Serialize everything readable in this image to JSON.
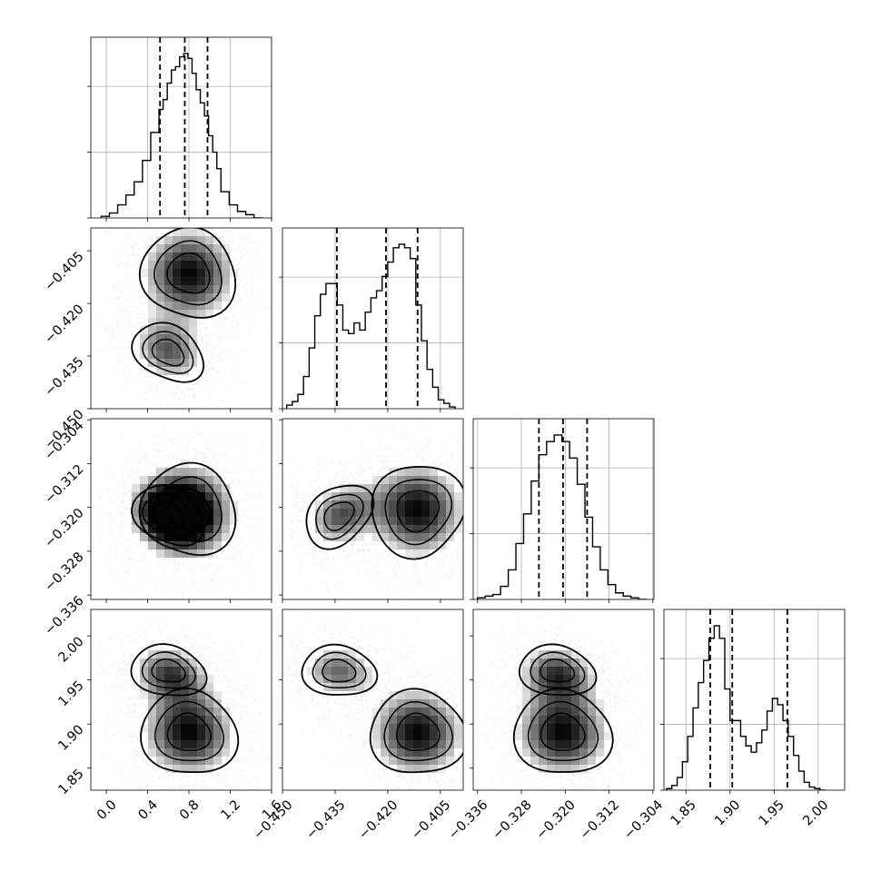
{
  "chart_data": {
    "type": "corner",
    "n_params": 4,
    "params": [
      {
        "lim": [
          -0.15,
          1.6
        ],
        "ticks": [
          0.0,
          0.4,
          0.8,
          1.2,
          1.6
        ],
        "tick_labels": [
          "0.0",
          "0.4",
          "0.8",
          "1.2",
          "1.6"
        ],
        "quantiles": [
          0.52,
          0.76,
          0.98
        ],
        "hist_edges": [
          -0.05,
          0.03,
          0.11,
          0.19,
          0.27,
          0.35,
          0.43,
          0.51,
          0.55,
          0.59,
          0.63,
          0.67,
          0.71,
          0.75,
          0.79,
          0.83,
          0.87,
          0.91,
          0.95,
          0.99,
          1.03,
          1.07,
          1.11,
          1.19,
          1.27,
          1.35,
          1.43,
          1.51
        ],
        "hist_counts": [
          1,
          3,
          8,
          14,
          22,
          35,
          52,
          66,
          72,
          82,
          90,
          92,
          98,
          100,
          97,
          88,
          78,
          70,
          62,
          50,
          40,
          30,
          16,
          8,
          4,
          2,
          0
        ]
      },
      {
        "lim": [
          -0.45,
          -0.3985
        ],
        "ticks": [
          -0.45,
          -0.435,
          -0.42,
          -0.405
        ],
        "tick_labels": [
          "−0.450",
          "−0.435",
          "−0.420",
          "−0.405"
        ],
        "quantiles": [
          -0.4345,
          -0.4205,
          -0.4115
        ],
        "hist_edges": [
          -0.4488,
          -0.4472,
          -0.4456,
          -0.444,
          -0.4424,
          -0.4408,
          -0.4392,
          -0.4376,
          -0.436,
          -0.4344,
          -0.4328,
          -0.4312,
          -0.4296,
          -0.428,
          -0.4264,
          -0.4248,
          -0.4232,
          -0.4216,
          -0.42,
          -0.4184,
          -0.4168,
          -0.4152,
          -0.4136,
          -0.412,
          -0.4104,
          -0.4088,
          -0.4072,
          -0.4056,
          -0.404,
          -0.4024,
          -0.4008
        ],
        "hist_counts": [
          2,
          4,
          8,
          18,
          34,
          52,
          64,
          70,
          70,
          58,
          44,
          42,
          48,
          44,
          54,
          62,
          66,
          74,
          82,
          90,
          92,
          90,
          84,
          58,
          38,
          22,
          12,
          5,
          3,
          1
        ]
      },
      {
        "lim": [
          -0.3368,
          -0.3038
        ],
        "ticks": [
          -0.336,
          -0.328,
          -0.32,
          -0.312,
          -0.304
        ],
        "tick_labels": [
          "−0.336",
          "−0.328",
          "−0.320",
          "−0.312",
          "−0.304"
        ],
        "quantiles": [
          -0.3248,
          -0.3204,
          -0.316
        ],
        "hist_edges": [
          -0.336,
          -0.3346,
          -0.3332,
          -0.3318,
          -0.3304,
          -0.329,
          -0.3276,
          -0.3262,
          -0.3248,
          -0.3234,
          -0.322,
          -0.3206,
          -0.3192,
          -0.3178,
          -0.3164,
          -0.315,
          -0.3136,
          -0.3122,
          -0.3108,
          -0.3094,
          -0.308,
          -0.3066,
          -0.3052
        ],
        "hist_counts": [
          1,
          2,
          3,
          8,
          18,
          34,
          52,
          72,
          88,
          96,
          100,
          96,
          86,
          70,
          50,
          32,
          18,
          9,
          4,
          2,
          1,
          0
        ]
      },
      {
        "lim": [
          1.825,
          2.03
        ],
        "ticks": [
          1.85,
          1.9,
          1.95,
          2.0
        ],
        "tick_labels": [
          "1.85",
          "1.90",
          "1.95",
          "2.00"
        ],
        "quantiles": [
          1.8775,
          1.9025,
          1.965
        ],
        "hist_edges": [
          1.828,
          1.834,
          1.84,
          1.846,
          1.852,
          1.858,
          1.864,
          1.87,
          1.876,
          1.882,
          1.888,
          1.894,
          1.9,
          1.906,
          1.912,
          1.918,
          1.924,
          1.93,
          1.936,
          1.942,
          1.948,
          1.954,
          1.96,
          1.966,
          1.972,
          1.978,
          1.984,
          1.99,
          1.996,
          2.002,
          2.008
        ],
        "hist_counts": [
          1,
          3,
          8,
          18,
          34,
          52,
          68,
          82,
          96,
          104,
          96,
          64,
          44,
          44,
          34,
          28,
          24,
          30,
          38,
          50,
          58,
          54,
          44,
          34,
          22,
          12,
          5,
          2,
          1,
          0
        ]
      }
    ],
    "modes": [
      [
        0.8,
        -0.4115,
        -0.3205,
        1.89
      ],
      [
        0.6,
        -0.434,
        -0.3215,
        1.96
      ]
    ],
    "grid": true,
    "contours": true,
    "scatter_points": true
  }
}
